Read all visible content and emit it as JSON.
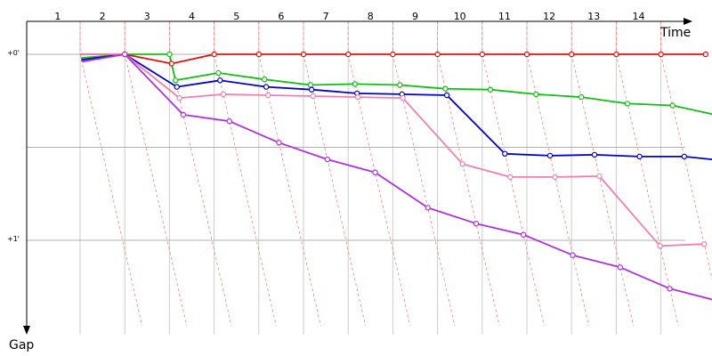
{
  "chart_data": {
    "type": "line",
    "x_axis_title": "Time",
    "y_axis_title": "Gap",
    "laps": [
      1,
      2,
      3,
      4,
      5,
      6,
      7,
      8,
      9,
      10,
      11,
      12,
      13,
      14
    ],
    "lap_labels": [
      "1",
      "2",
      "3",
      "4",
      "5",
      "6",
      "7",
      "8",
      "9",
      "10",
      "11",
      "12",
      "13",
      "14"
    ],
    "y_ticks": [
      {
        "value": 0,
        "label": "+0'"
      },
      {
        "value": 1,
        "label": "+1'"
      }
    ],
    "y_grid": [
      0,
      0.5,
      1
    ],
    "ylim": [
      -0.13,
      1.5
    ],
    "grid": true,
    "colors": {
      "red": "#e01010",
      "green": "#10c010",
      "blue": "#0000cc",
      "pink": "#f080b0",
      "purple": "#b030e0",
      "lap_grid": "#cccccc",
      "h_grid": "#999999",
      "connector": "#f08080"
    },
    "series": [
      {
        "color": "#e01010",
        "points": [
          [
            0.0,
            0.0
          ],
          [
            1.0,
            0.0
          ],
          [
            2.0,
            0.05
          ],
          [
            3.0,
            0.0
          ],
          [
            4.0,
            0.0
          ],
          [
            5.0,
            0.0
          ],
          [
            6.0,
            0.0
          ],
          [
            7.0,
            0.0
          ],
          [
            8.0,
            0.0
          ],
          [
            9.0,
            0.0
          ],
          [
            10.0,
            0.0
          ],
          [
            11.0,
            0.0
          ],
          [
            12.0,
            0.0
          ],
          [
            13.0,
            0.0
          ],
          [
            14.0,
            0.0
          ]
        ]
      },
      {
        "color": "#10c010",
        "points": [
          [
            0.0,
            0.02
          ],
          [
            1.0,
            0.0
          ],
          [
            2.0,
            0.0
          ],
          [
            2.0,
            0.14
          ],
          [
            3.0,
            0.1
          ],
          [
            4.0,
            0.135
          ],
          [
            5.0,
            0.165
          ],
          [
            6.0,
            0.16
          ],
          [
            7.0,
            0.165
          ],
          [
            8.0,
            0.185
          ],
          [
            9.0,
            0.19
          ],
          [
            10.0,
            0.215
          ],
          [
            11.0,
            0.23
          ],
          [
            12.0,
            0.265
          ],
          [
            13.0,
            0.275
          ],
          [
            14.0,
            0.33
          ]
        ]
      },
      {
        "color": "#0000cc",
        "points": [
          [
            0.0,
            0.03
          ],
          [
            1.0,
            0.0
          ],
          [
            2.0,
            0.175
          ],
          [
            3.0,
            0.14
          ],
          [
            4.0,
            0.175
          ],
          [
            5.0,
            0.19
          ],
          [
            6.0,
            0.21
          ],
          [
            7.0,
            0.215
          ],
          [
            8.0,
            0.22
          ],
          [
            9.0,
            0.535
          ],
          [
            10.0,
            0.545
          ],
          [
            11.0,
            0.54
          ],
          [
            12.0,
            0.55
          ],
          [
            13.0,
            0.55
          ],
          [
            14.0,
            0.575
          ]
        ]
      },
      {
        "color": "#f080b0",
        "points": [
          [
            0.0,
            0.0
          ],
          [
            1.0,
            0.0
          ],
          [
            2.0,
            0.235
          ],
          [
            3.0,
            0.215
          ],
          [
            4.0,
            0.22
          ],
          [
            5.0,
            0.225
          ],
          [
            6.0,
            0.23
          ],
          [
            7.0,
            0.235
          ],
          [
            8.0,
            0.59
          ],
          [
            9.0,
            0.66
          ],
          [
            10.0,
            0.66
          ],
          [
            11.0,
            0.655
          ],
          [
            12.0,
            1.03
          ],
          [
            13.0,
            1.02
          ]
        ]
      },
      {
        "color": "#b030e0",
        "points": [
          [
            0.0,
            0.04
          ],
          [
            1.0,
            0.0
          ],
          [
            2.0,
            0.325
          ],
          [
            3.0,
            0.36
          ],
          [
            4.0,
            0.475
          ],
          [
            5.0,
            0.565
          ],
          [
            6.0,
            0.635
          ],
          [
            7.0,
            0.825
          ],
          [
            8.0,
            0.91
          ],
          [
            9.0,
            0.97
          ],
          [
            10.0,
            1.08
          ],
          [
            11.0,
            1.145
          ],
          [
            12.0,
            1.26
          ],
          [
            13.0,
            1.325
          ],
          [
            14.0,
            1.42
          ]
        ]
      }
    ]
  }
}
